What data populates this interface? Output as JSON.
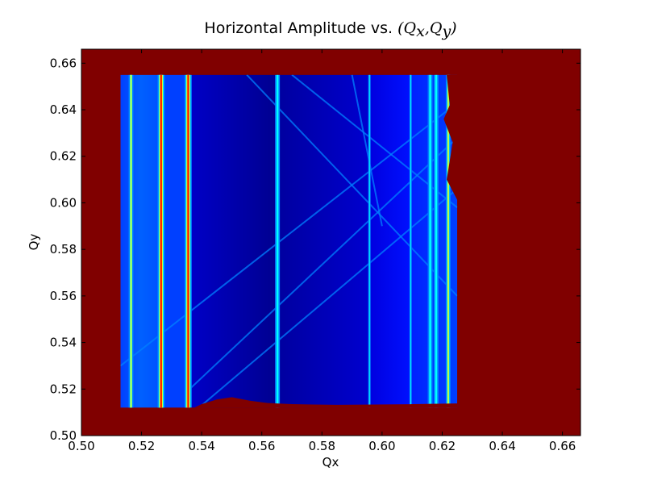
{
  "chart_data": {
    "type": "heatmap",
    "title": {
      "text": "Horizontal Amplitude vs. ",
      "math_open": "(",
      "qx_base": "Q",
      "qx_sub": "x",
      "comma": ",",
      "qy_base": "Q",
      "qy_sub": "y",
      "math_close": ")"
    },
    "xlabel": "Qx",
    "ylabel": "Qy",
    "xlim": [
      0.5,
      0.666
    ],
    "ylim": [
      0.5,
      0.666
    ],
    "xticks": [
      "0.50",
      "0.52",
      "0.54",
      "0.56",
      "0.58",
      "0.60",
      "0.62",
      "0.64",
      "0.66"
    ],
    "yticks": [
      "0.50",
      "0.52",
      "0.54",
      "0.56",
      "0.58",
      "0.60",
      "0.62",
      "0.64",
      "0.66"
    ],
    "colormap": "jet",
    "background_color": "#800000",
    "scan_region": {
      "qx_range": [
        0.513,
        0.625
      ],
      "qy_range": [
        0.512,
        0.655
      ]
    },
    "vertical_resonance_lines": [
      {
        "qx": 0.5165,
        "intensity": "high"
      },
      {
        "qx": 0.5265,
        "intensity": "very-high"
      },
      {
        "qx": 0.5355,
        "intensity": "very-high"
      },
      {
        "qx": 0.5652,
        "intensity": "medium"
      },
      {
        "qx": 0.5958,
        "intensity": "low"
      },
      {
        "qx": 0.6095,
        "intensity": "low"
      },
      {
        "qx": 0.616,
        "intensity": "medium"
      },
      {
        "qx": 0.618,
        "intensity": "medium"
      },
      {
        "qx": 0.622,
        "intensity": "high"
      }
    ],
    "diagonal_resonance_lines": [
      {
        "from": [
          0.513,
          0.53
        ],
        "to": [
          0.625,
          0.643
        ]
      },
      {
        "from": [
          0.536,
          0.52
        ],
        "to": [
          0.625,
          0.628
        ]
      },
      {
        "from": [
          0.54,
          0.513
        ],
        "to": [
          0.625,
          0.606
        ]
      },
      {
        "from": [
          0.555,
          0.655
        ],
        "to": [
          0.625,
          0.56
        ]
      },
      {
        "from": [
          0.57,
          0.655
        ],
        "to": [
          0.625,
          0.598
        ]
      },
      {
        "from": [
          0.59,
          0.655
        ],
        "to": [
          0.6,
          0.59
        ]
      }
    ],
    "colors": {
      "deep_blue": "#00008f",
      "dark_blue": "#0000bf",
      "blue": "#0000ff",
      "mid_blue": "#0040ff",
      "light_blue": "#0080ff",
      "cyan": "#00ffff",
      "yellow": "#ffff00",
      "orange": "#ff8000",
      "red": "#ff0000"
    }
  }
}
